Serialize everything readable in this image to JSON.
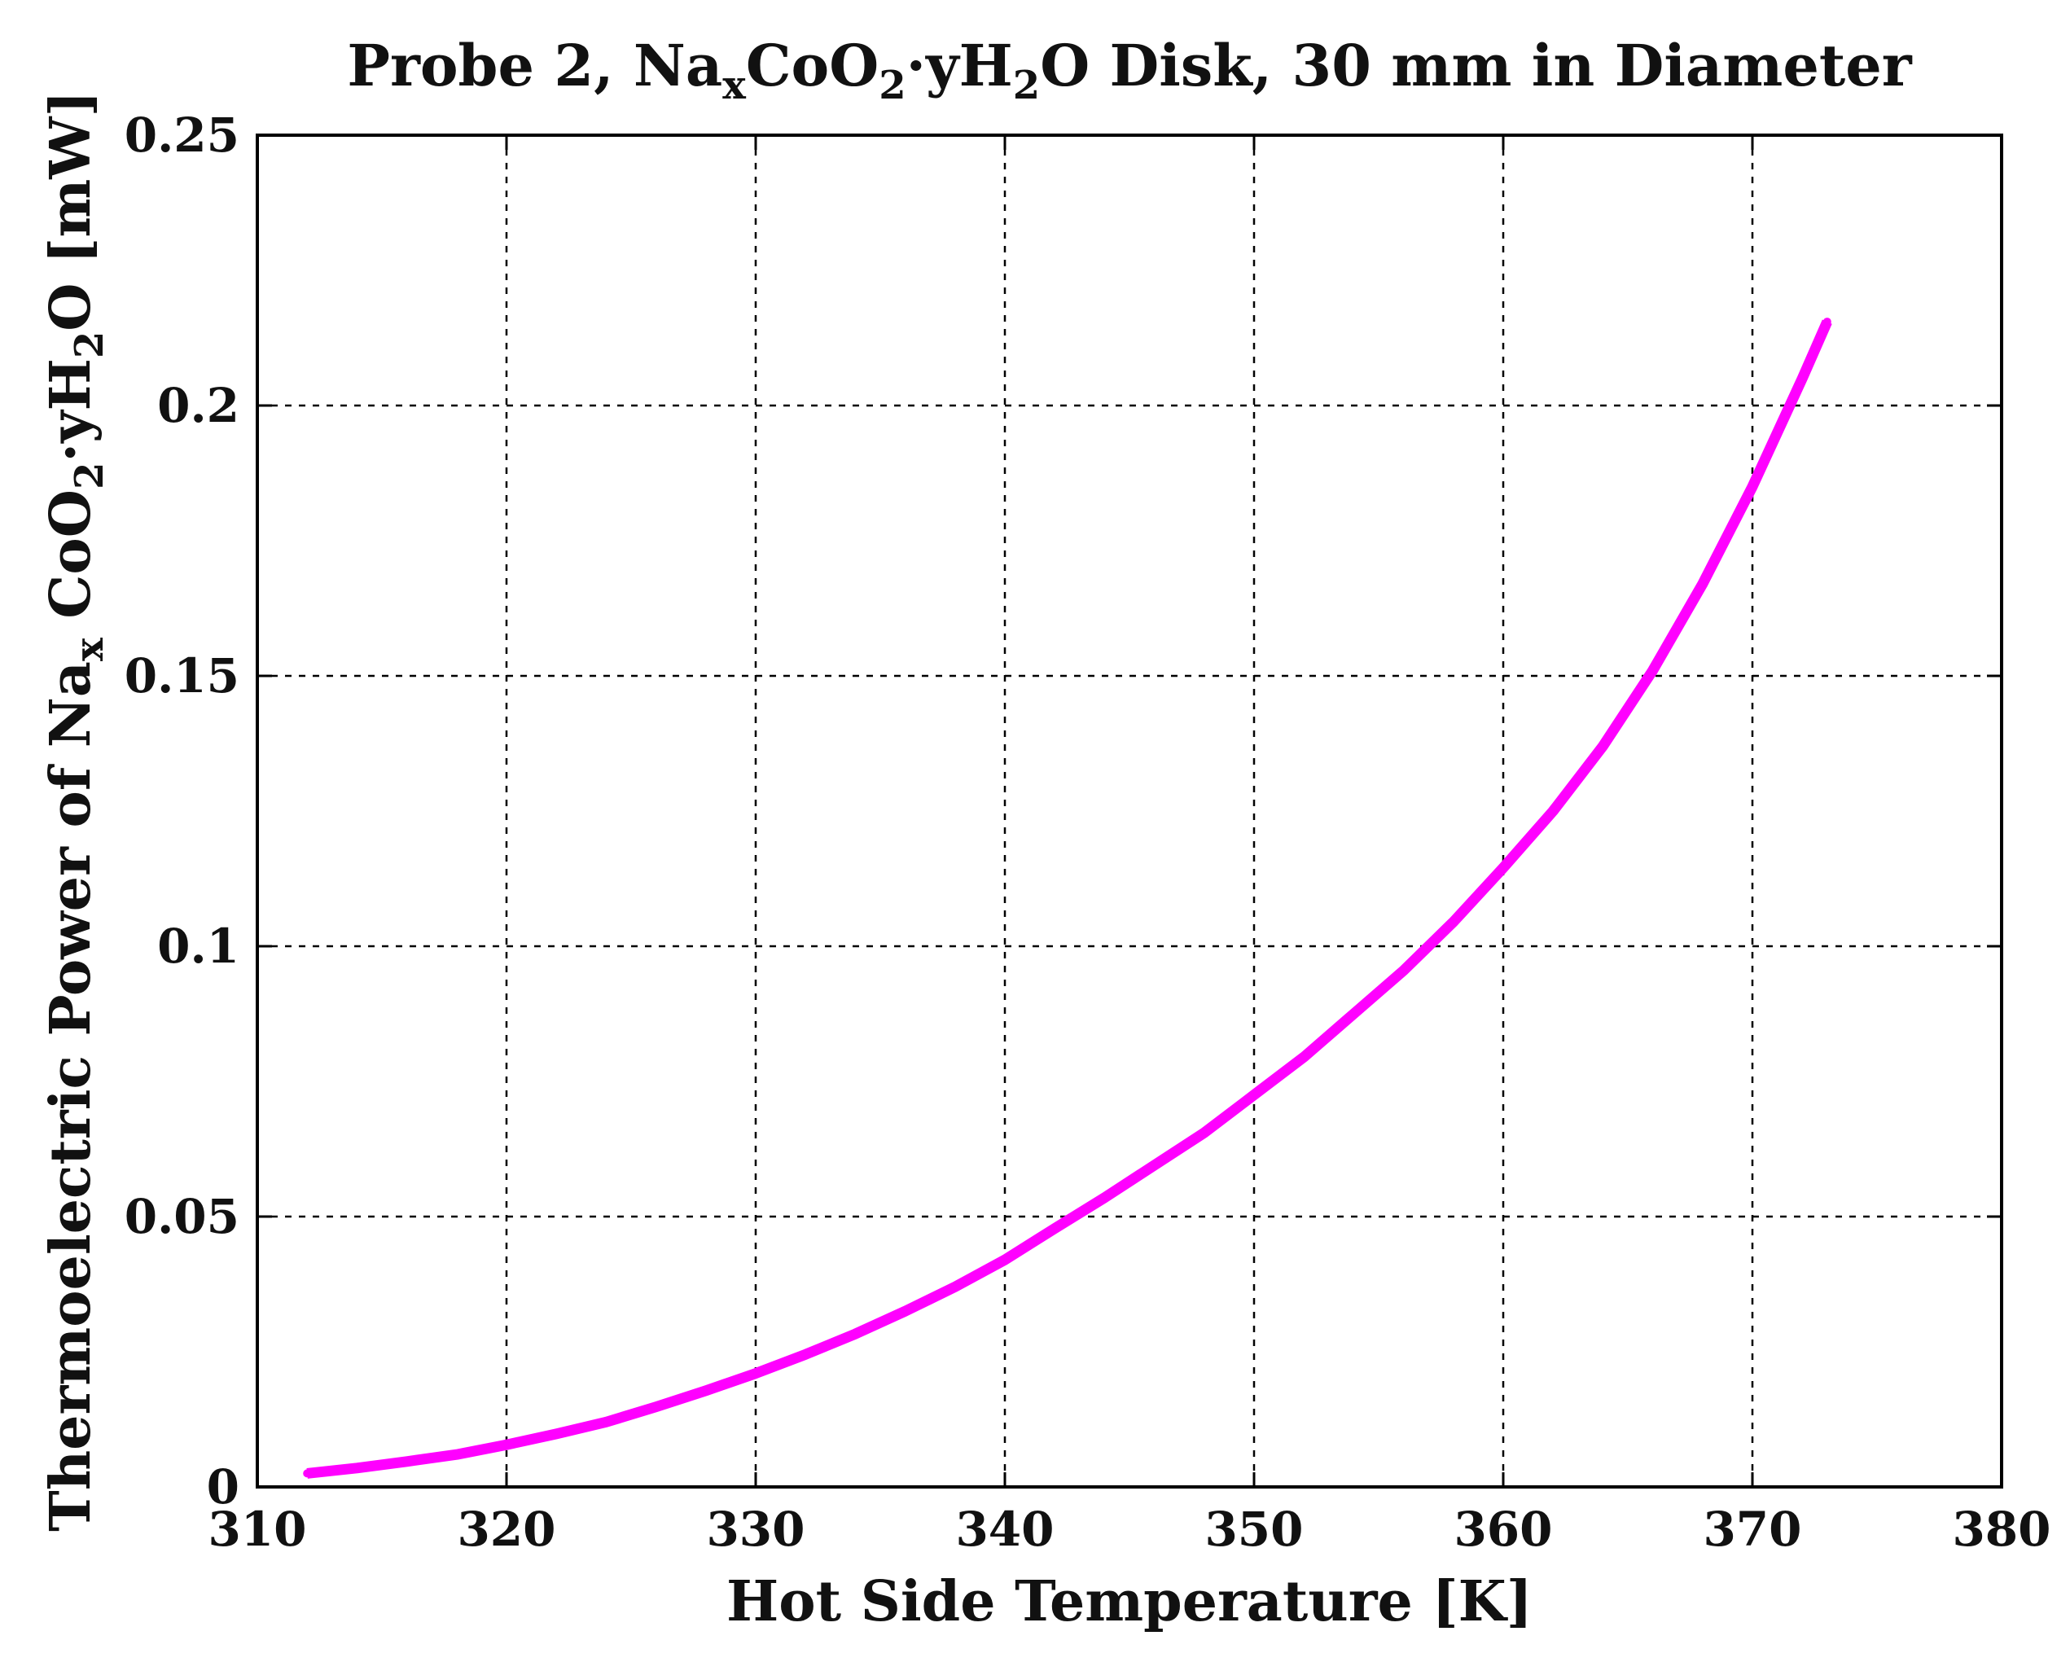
{
  "chart_data": {
    "type": "line",
    "title": {
      "parts": [
        {
          "text": "Probe 2, Na",
          "sub": false
        },
        {
          "text": "x",
          "sub": true
        },
        {
          "text": "CoO",
          "sub": false
        },
        {
          "text": "2",
          "sub": true
        },
        {
          "text": "·yH",
          "sub": false
        },
        {
          "text": "2",
          "sub": true
        },
        {
          "text": "O Disk, 30 mm in Diameter",
          "sub": false
        }
      ]
    },
    "xlabel": "Hot Side Temperature [K]",
    "ylabel": {
      "parts": [
        {
          "text": "Thermoelectric Power of Na",
          "sub": false
        },
        {
          "text": "x",
          "sub": true
        },
        {
          "text": " CoO",
          "sub": false
        },
        {
          "text": "2",
          "sub": true
        },
        {
          "text": "·yH",
          "sub": false
        },
        {
          "text": "2",
          "sub": true
        },
        {
          "text": "O [mW]",
          "sub": false
        }
      ]
    },
    "xlim": [
      310,
      380
    ],
    "ylim": [
      0,
      0.25
    ],
    "xticks": [
      310,
      320,
      330,
      340,
      350,
      360,
      370,
      380
    ],
    "xtick_labels": [
      "310",
      "320",
      "330",
      "340",
      "350",
      "360",
      "370",
      "380"
    ],
    "yticks": [
      0,
      0.05,
      0.1,
      0.15,
      0.2,
      0.25
    ],
    "ytick_labels": [
      "0",
      "0.05",
      "0.1",
      "0.15",
      "0.2",
      "0.25"
    ],
    "grid": true,
    "series": [
      {
        "name": "Thermoelectric Power",
        "color": "#ff00ff",
        "x": [
          312,
          314,
          316,
          318,
          320,
          322,
          324,
          326,
          328,
          330,
          332,
          334,
          336,
          338,
          340,
          342,
          344,
          346,
          348,
          350,
          352,
          354,
          356,
          358,
          360,
          362,
          364,
          366,
          368,
          370,
          372,
          373
        ],
        "y": [
          0.0025,
          0.0035,
          0.0047,
          0.006,
          0.0078,
          0.0098,
          0.012,
          0.0148,
          0.0178,
          0.021,
          0.0245,
          0.0283,
          0.0325,
          0.037,
          0.042,
          0.0478,
          0.0535,
          0.0595,
          0.0655,
          0.0725,
          0.0795,
          0.0875,
          0.0955,
          0.1045,
          0.1145,
          0.125,
          0.137,
          0.151,
          0.167,
          0.185,
          0.205,
          0.2155
        ]
      }
    ]
  }
}
